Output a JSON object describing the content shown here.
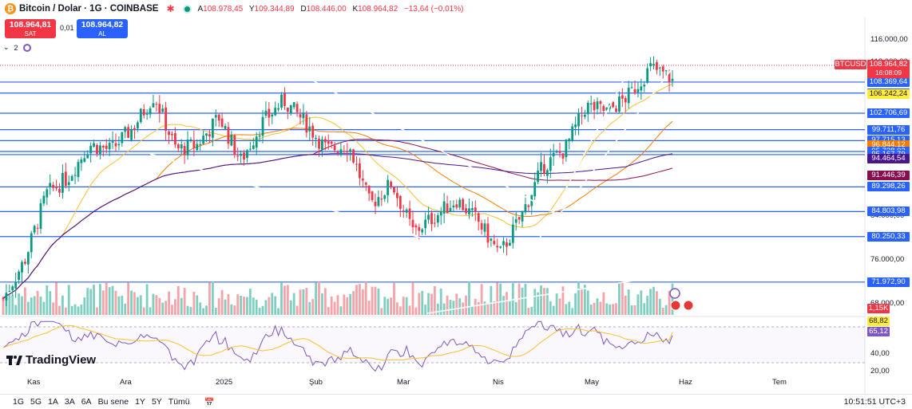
{
  "header": {
    "symbol": "Bitcoin / Dolar · 1G · COINBASE",
    "open_key": "A",
    "open": "108.978,45",
    "high_key": "Y",
    "high": "109.344,89",
    "low_key": "D",
    "low": "108.446,00",
    "close_key": "K",
    "close": "108.964,82",
    "change": "−13,64 (−0,01%)"
  },
  "trade": {
    "sell_price": "108.964,81",
    "sell_label": "SAT",
    "spread": "0,01",
    "buy_price": "108.964,82",
    "buy_label": "AL",
    "indicator_count": "2"
  },
  "price_tag": {
    "symbol": "BTCUSD",
    "price": "108.964,82",
    "countdown": "16:08:09"
  },
  "price_axis": {
    "ticks": [
      "116.000,00",
      "112.000,00",
      "84.000,00",
      "76.000,00",
      "68.000,00"
    ],
    "levels": [
      {
        "label": "108.369,64",
        "bg": "#2962ff"
      },
      {
        "label": "106.369,58",
        "bg": "#2962ff"
      },
      {
        "label": "106.242,24",
        "bg": "#ffeb3b",
        "fg": "#131722"
      },
      {
        "label": "102.706,69",
        "bg": "#2962ff"
      },
      {
        "label": "99.711,76",
        "bg": "#2962ff"
      },
      {
        "label": "97.715,13",
        "bg": "#2962ff"
      },
      {
        "label": "96.844,12",
        "bg": "#f57c00"
      },
      {
        "label": "95.738,02",
        "bg": "#2962ff"
      },
      {
        "label": "95.167,79",
        "bg": "#2962ff"
      },
      {
        "label": "94.464,54",
        "bg": "#4a148c"
      },
      {
        "label": "91.446,39",
        "bg": "#880e4f"
      },
      {
        "label": "89.298,26",
        "bg": "#2962ff"
      },
      {
        "label": "84.803,98",
        "bg": "#2962ff"
      },
      {
        "label": "80.250,33",
        "bg": "#2962ff"
      },
      {
        "label": "71.972,90",
        "bg": "#2962ff"
      }
    ],
    "volume_tag": "1,15K",
    "rsi_tags": [
      {
        "label": "68,82",
        "bg": "#ffeb3b",
        "fg": "#131722"
      },
      {
        "label": "65,12",
        "bg": "#7e57c2"
      }
    ],
    "rsi_ticks": [
      "40,00",
      "20,00"
    ]
  },
  "time_axis": [
    "Kas",
    "Ara",
    "2025",
    "Şub",
    "Mar",
    "Nis",
    "May",
    "Haz",
    "Tem"
  ],
  "range_buttons": [
    "1G",
    "5G",
    "1A",
    "3A",
    "6A",
    "Bu sene",
    "1Y",
    "5Y",
    "Tümü"
  ],
  "clock": "10:51:51 UTC+3",
  "brand": "TradingView",
  "colors": {
    "up": "#089981",
    "down": "#f23645",
    "level": "#2962ff",
    "ma_fast": "#fbc02d",
    "ma_mid": "#f57c00",
    "ma_slow": "#880e4f",
    "ma_long": "#4a148c",
    "rsi": "#7e57c2"
  },
  "chart_data": {
    "type": "candlestick",
    "title": "Bitcoin / Dolar · 1G · COINBASE",
    "y_range": [
      68000,
      116000
    ],
    "x_range": [
      "Kas",
      "Tem"
    ],
    "close_path": [
      {
        "x": "Kas",
        "y": 69000
      },
      {
        "x": "Kas",
        "y": 76000
      },
      {
        "x": "Kas",
        "y": 88000
      },
      {
        "x": "Kas",
        "y": 91000
      },
      {
        "x": "Kas",
        "y": 97000
      },
      {
        "x": "Ara",
        "y": 96000
      },
      {
        "x": "Ara",
        "y": 100000
      },
      {
        "x": "Ara",
        "y": 106000
      },
      {
        "x": "Ara",
        "y": 96000
      },
      {
        "x": "2025",
        "y": 97000
      },
      {
        "x": "2025",
        "y": 102000
      },
      {
        "x": "2025",
        "y": 94000
      },
      {
        "x": "2025",
        "y": 101000
      },
      {
        "x": "Şub",
        "y": 105000
      },
      {
        "x": "Şub",
        "y": 101000
      },
      {
        "x": "Şub",
        "y": 96000
      },
      {
        "x": "Şub",
        "y": 97000
      },
      {
        "x": "Mar",
        "y": 86000
      },
      {
        "x": "Mar",
        "y": 90000
      },
      {
        "x": "Mar",
        "y": 81000
      },
      {
        "x": "Mar",
        "y": 84000
      },
      {
        "x": "Mar",
        "y": 87000
      },
      {
        "x": "Nis",
        "y": 83000
      },
      {
        "x": "Nis",
        "y": 77000
      },
      {
        "x": "Nis",
        "y": 84000
      },
      {
        "x": "Nis",
        "y": 93000
      },
      {
        "x": "May",
        "y": 96000
      },
      {
        "x": "May",
        "y": 104000
      },
      {
        "x": "May",
        "y": 103000
      },
      {
        "x": "May",
        "y": 106000
      },
      {
        "x": "Haz",
        "y": 111000
      },
      {
        "x": "Haz",
        "y": 108964.82
      }
    ],
    "horizontal_levels": [
      108369.64,
      106369.58,
      102706.69,
      99711.76,
      97715.13,
      95738.02,
      95167.79,
      89298.26,
      84803.98,
      80250.33,
      71972.9
    ],
    "moving_averages": [
      {
        "color": "#fbc02d",
        "last": 106242.24
      },
      {
        "color": "#f57c00",
        "last": 96844.12
      },
      {
        "color": "#4a148c",
        "last": 94464.54
      },
      {
        "color": "#880e4f",
        "last": 91446.39
      }
    ],
    "volume_last": "1,15K",
    "rsi": {
      "values": [
        68.82,
        65.12
      ],
      "ticks": [
        40,
        20
      ]
    },
    "grid": false
  }
}
